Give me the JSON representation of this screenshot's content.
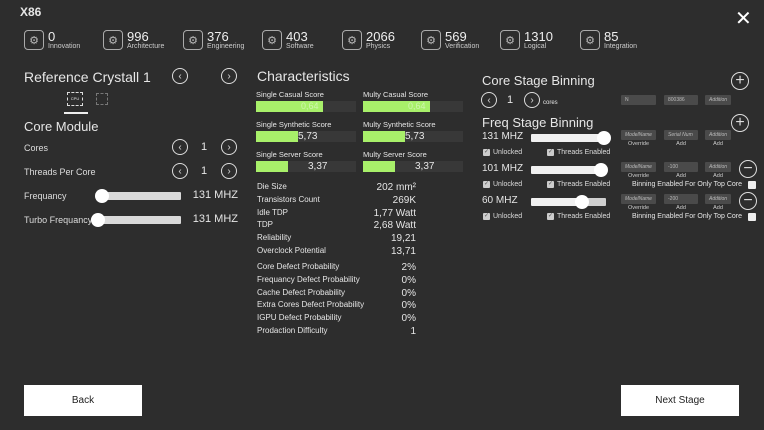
{
  "title": "X86",
  "stats": [
    {
      "value": "0",
      "label": "Innovation",
      "icon": "lightbulb-gear-icon"
    },
    {
      "value": "996",
      "label": "Architecture",
      "icon": "chip-icon"
    },
    {
      "value": "376",
      "label": "Engineering",
      "icon": "circuit-icon"
    },
    {
      "value": "403",
      "label": "Software",
      "icon": "monitor-icon"
    },
    {
      "value": "2066",
      "label": "Physics",
      "icon": "atom-icon"
    },
    {
      "value": "569",
      "label": "Verification",
      "icon": "document-check-icon"
    },
    {
      "value": "1310",
      "label": "Logical",
      "icon": "flowchart-icon"
    },
    {
      "value": "85",
      "label": "Integration",
      "icon": "gears-icon"
    }
  ],
  "left": {
    "reference": "Reference Crystall 1",
    "module_title": "Core Module",
    "cores_label": "Cores",
    "cores_value": "1",
    "threads_label": "Threads Per Core",
    "threads_value": "1",
    "freq_label": "Frequancy",
    "freq_value": "131 MHZ",
    "freq_level": 0.01,
    "turbo_label": "Turbo Frequancy",
    "turbo_value": "131 MHZ",
    "turbo_level": 0.0,
    "tab_cpu": "CPU"
  },
  "characteristics": {
    "title": "Characteristics",
    "scores": [
      {
        "label": "Single Casual Score",
        "value": "0,64",
        "fill": 0.67
      },
      {
        "label": "Multy Casual Score",
        "value": "0,64",
        "fill": 0.67
      },
      {
        "label": "Single Synthetic Score",
        "value": "5,73",
        "fill": 0.42
      },
      {
        "label": "Multy Synthetic Score",
        "value": "5,73",
        "fill": 0.42
      },
      {
        "label": "Single Server Score",
        "value": "3,37",
        "fill": 0.32
      },
      {
        "label": "Multy Server Score",
        "value": "3,37",
        "fill": 0.32
      }
    ],
    "stats": [
      {
        "label": "Die Size",
        "value": "202 mm²"
      },
      {
        "label": "Transistors Count",
        "value": "269K"
      },
      {
        "label": "Idle TDP",
        "value": "1,77 Watt"
      },
      {
        "label": "TDP",
        "value": "2,68 Watt"
      },
      {
        "label": "Reliability",
        "value": "19,21"
      },
      {
        "label": "Overclock Potential",
        "value": "13,71"
      }
    ],
    "defects": [
      {
        "label": "Core Defect Probability",
        "value": "2%"
      },
      {
        "label": "Frequancy Defect Probability",
        "value": "0%"
      },
      {
        "label": "Cache Defect Probability",
        "value": "0%"
      },
      {
        "label": "Extra Cores Defect Probability",
        "value": "0%"
      },
      {
        "label": "IGPU Defect Probability",
        "value": "0%"
      },
      {
        "label": "Prodaction Difficulty",
        "value": "1"
      }
    ]
  },
  "core_binning": {
    "title": "Core Stage Binning",
    "value": "1",
    "unit": "cores",
    "inputs": [
      "N",
      "800386",
      "Addition"
    ]
  },
  "freq_binning": {
    "title": "Freq Stage Binning",
    "rows": [
      {
        "freq": "131 MHZ",
        "level": 0.97,
        "inputs": [
          "ModelName",
          "Serial Num",
          "Addition"
        ],
        "sublabels": [
          "Override",
          "Add",
          "Add"
        ],
        "unlocked": "Unlocked",
        "threads": "Threads Enabled",
        "top_core": ""
      },
      {
        "freq": "101 MHZ",
        "level": 0.93,
        "inputs": [
          "ModelName",
          "-100",
          "Addition"
        ],
        "sublabels": [
          "Override",
          "Add",
          "Add"
        ],
        "unlocked": "Unlocked",
        "threads": "Threads Enabled",
        "top_core": "Binning Enabled For Only Top Core"
      },
      {
        "freq": "60 MHZ",
        "level": 0.68,
        "inputs": [
          "ModelName",
          "-200",
          "Addition"
        ],
        "sublabels": [
          "Override",
          "Add",
          "Add"
        ],
        "unlocked": "Unlocked",
        "threads": "Threads Enabled",
        "top_core": "Binning Enabled For Only Top Core"
      }
    ]
  },
  "buttons": {
    "back": "Back",
    "next": "Next Stage"
  },
  "colors": {
    "background": "#2d2d2d",
    "score_bar": "#a8f06a"
  }
}
